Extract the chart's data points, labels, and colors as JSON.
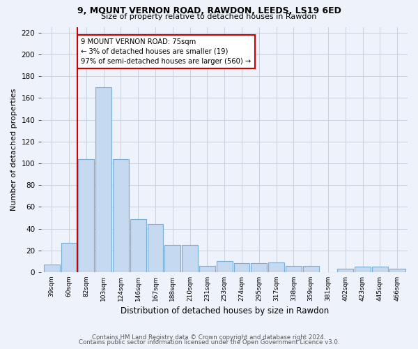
{
  "title_line1": "9, MOUNT VERNON ROAD, RAWDON, LEEDS, LS19 6ED",
  "title_line2": "Size of property relative to detached houses in Rawdon",
  "xlabel": "Distribution of detached houses by size in Rawdon",
  "ylabel": "Number of detached properties",
  "categories": [
    "39sqm",
    "60sqm",
    "82sqm",
    "103sqm",
    "124sqm",
    "146sqm",
    "167sqm",
    "188sqm",
    "210sqm",
    "231sqm",
    "253sqm",
    "274sqm",
    "295sqm",
    "317sqm",
    "338sqm",
    "359sqm",
    "381sqm",
    "402sqm",
    "423sqm",
    "445sqm",
    "466sqm"
  ],
  "values": [
    7,
    27,
    104,
    170,
    104,
    49,
    44,
    25,
    25,
    6,
    10,
    8,
    8,
    9,
    6,
    6,
    0,
    3,
    5,
    5,
    3
  ],
  "bar_color": "#c5d9f0",
  "bar_edge_color": "#7badd4",
  "vline_x_index": 1.5,
  "vline_color": "#cc0000",
  "annotation_text": "9 MOUNT VERNON ROAD: 75sqm\n← 3% of detached houses are smaller (19)\n97% of semi-detached houses are larger (560) →",
  "annotation_box_color": "#ffffff",
  "annotation_box_edge": "#cc0000",
  "ylim": [
    0,
    225
  ],
  "yticks": [
    0,
    20,
    40,
    60,
    80,
    100,
    120,
    140,
    160,
    180,
    200,
    220
  ],
  "footer_line1": "Contains HM Land Registry data © Crown copyright and database right 2024.",
  "footer_line2": "Contains public sector information licensed under the Open Government Licence v3.0.",
  "bg_color": "#eef2fa",
  "plot_bg_color": "#eef2fa",
  "grid_color": "#c8d0dc"
}
